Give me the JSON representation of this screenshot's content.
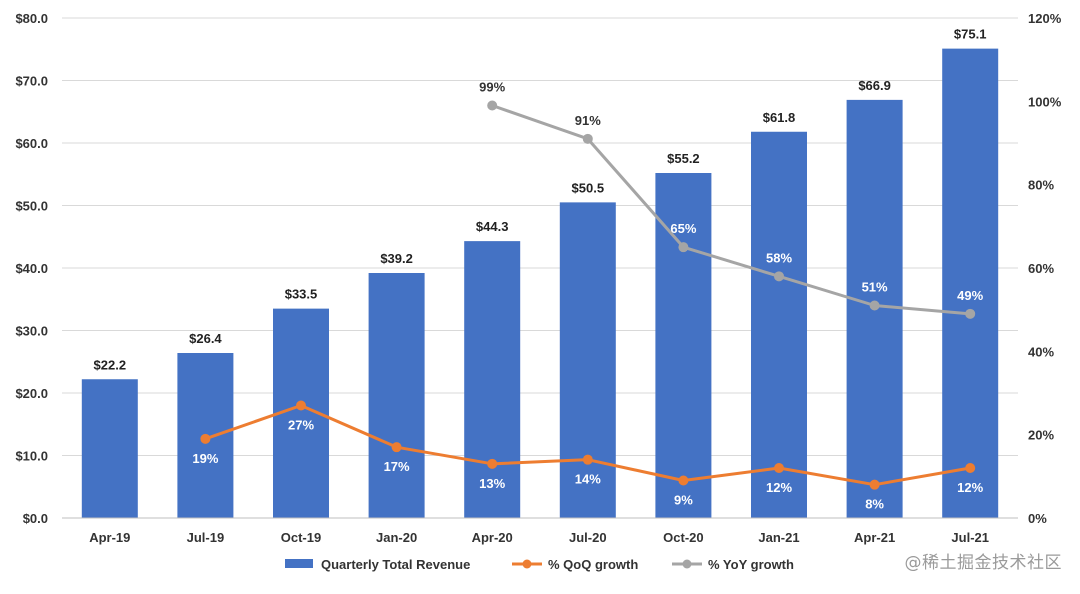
{
  "chart_data": {
    "type": "bar",
    "categories": [
      "Apr-19",
      "Jul-19",
      "Oct-19",
      "Jan-20",
      "Apr-20",
      "Jul-20",
      "Oct-20",
      "Jan-21",
      "Apr-21",
      "Jul-21"
    ],
    "series": [
      {
        "name": "Quarterly Total Revenue",
        "type": "bar",
        "axis": "left",
        "color": "#4472C4",
        "values": [
          22.2,
          26.4,
          33.5,
          39.2,
          44.3,
          50.5,
          55.2,
          61.8,
          66.9,
          75.1
        ],
        "labels": [
          "$22.2",
          "$26.4",
          "$33.5",
          "$39.2",
          "$44.3",
          "$50.5",
          "$55.2",
          "$61.8",
          "$66.9",
          "$75.1"
        ]
      },
      {
        "name": "% QoQ growth",
        "type": "line",
        "axis": "right",
        "color": "#ED7D31",
        "values": [
          null,
          19,
          27,
          17,
          13,
          14,
          9,
          12,
          8,
          12
        ],
        "labels": [
          "",
          "19%",
          "27%",
          "17%",
          "13%",
          "14%",
          "9%",
          "12%",
          "8%",
          "12%"
        ]
      },
      {
        "name": "% YoY growth",
        "type": "line",
        "axis": "right",
        "color": "#A5A5A5",
        "values": [
          null,
          null,
          null,
          null,
          99,
          91,
          65,
          58,
          51,
          49
        ],
        "labels": [
          "",
          "",
          "",
          "",
          "99%",
          "91%",
          "65%",
          "58%",
          "51%",
          "49%"
        ]
      }
    ],
    "y_left": {
      "min": 0,
      "max": 80,
      "ticks": [
        "$0.0",
        "$10.0",
        "$20.0",
        "$30.0",
        "$40.0",
        "$50.0",
        "$60.0",
        "$70.0",
        "$80.0"
      ]
    },
    "y_right": {
      "min": 0,
      "max": 120,
      "ticks": [
        "0%",
        "20%",
        "40%",
        "60%",
        "80%",
        "100%",
        "120%"
      ]
    },
    "grid": true,
    "legend_position": "bottom"
  },
  "watermark": "@稀土掘金技术社区"
}
